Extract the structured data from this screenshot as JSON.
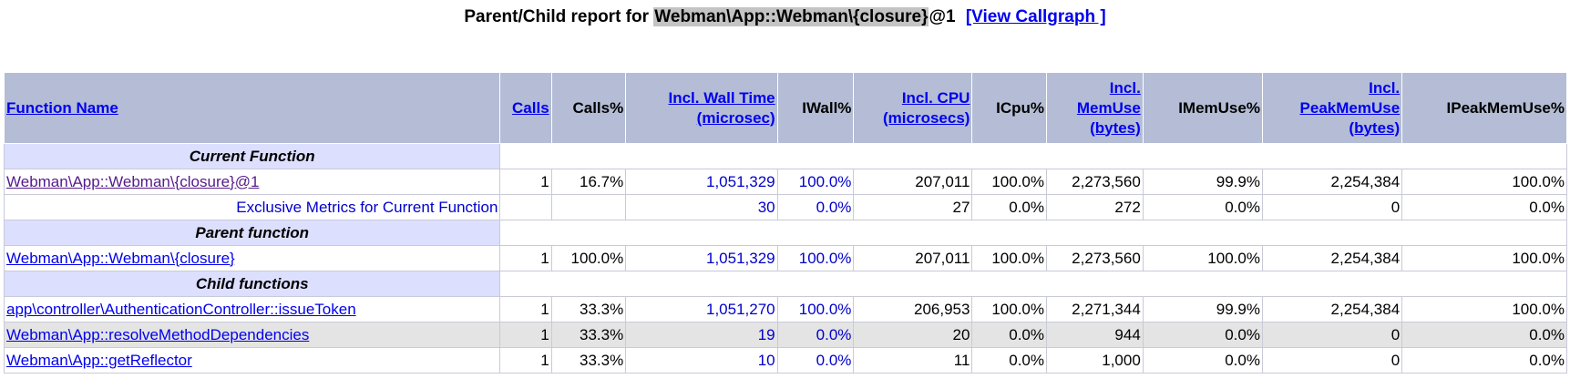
{
  "title": {
    "prefix": "Parent/Child report for ",
    "function": "Webman\\App::Webman\\{closure}",
    "suffix": "@1",
    "callgraph_link": "[View Callgraph ]"
  },
  "columns": [
    "Function Name",
    "Calls",
    "Calls%",
    "Incl. Wall Time (microsec)",
    "IWall%",
    "Incl. CPU (microsecs)",
    "ICpu%",
    "Incl. MemUse (bytes)",
    "IMemUse%",
    "Incl. PeakMemUse (bytes)",
    "IPeakMemUse%"
  ],
  "header": {
    "fn": "Function Name",
    "calls": "Calls",
    "calls_pct": "Calls%",
    "wall_a": "Incl. Wall Time",
    "wall_b": "(microsec)",
    "iwall": "IWall%",
    "cpu_a": "Incl. CPU",
    "cpu_b": "(microsecs)",
    "icpu": "ICpu%",
    "mem_a": "Incl.",
    "mem_b": "MemUse",
    "mem_c": "(bytes)",
    "imem": "IMemUse%",
    "peak_a": "Incl.",
    "peak_b": "PeakMemUse",
    "peak_c": "(bytes)",
    "ipeak": "IPeakMemUse%"
  },
  "sections": {
    "current": "Current Function",
    "parent": "Parent function",
    "children": "Child functions"
  },
  "current": {
    "name": "Webman\\App::Webman\\{closure}@1",
    "calls": "1",
    "calls_pct": "16.7%",
    "wall": "1,051,329",
    "iwall": "100.0%",
    "cpu": "207,011",
    "icpu": "100.0%",
    "mem": "2,273,560",
    "imem": "99.9%",
    "peak": "2,254,384",
    "ipeak": "100.0%"
  },
  "exclusive": {
    "name": "Exclusive Metrics for Current Function",
    "wall": "30",
    "iwall": "0.0%",
    "cpu": "27",
    "icpu": "0.0%",
    "mem": "272",
    "imem": "0.0%",
    "peak": "0",
    "ipeak": "0.0%"
  },
  "parent": {
    "name": "Webman\\App::Webman\\{closure}",
    "calls": "1",
    "calls_pct": "100.0%",
    "wall": "1,051,329",
    "iwall": "100.0%",
    "cpu": "207,011",
    "icpu": "100.0%",
    "mem": "2,273,560",
    "imem": "100.0%",
    "peak": "2,254,384",
    "ipeak": "100.0%"
  },
  "children": [
    {
      "name": "app\\controller\\AuthenticationController::issueToken",
      "calls": "1",
      "calls_pct": "33.3%",
      "wall": "1,051,270",
      "iwall": "100.0%",
      "cpu": "206,953",
      "icpu": "100.0%",
      "mem": "2,271,344",
      "imem": "99.9%",
      "peak": "2,254,384",
      "ipeak": "100.0%"
    },
    {
      "name": "Webman\\App::resolveMethodDependencies",
      "calls": "1",
      "calls_pct": "33.3%",
      "wall": "19",
      "iwall": "0.0%",
      "cpu": "20",
      "icpu": "0.0%",
      "mem": "944",
      "imem": "0.0%",
      "peak": "0",
      "ipeak": "0.0%"
    },
    {
      "name": "Webman\\App::getReflector",
      "calls": "1",
      "calls_pct": "33.3%",
      "wall": "10",
      "iwall": "0.0%",
      "cpu": "11",
      "icpu": "0.0%",
      "mem": "1,000",
      "imem": "0.0%",
      "peak": "0",
      "ipeak": "0.0%"
    }
  ]
}
